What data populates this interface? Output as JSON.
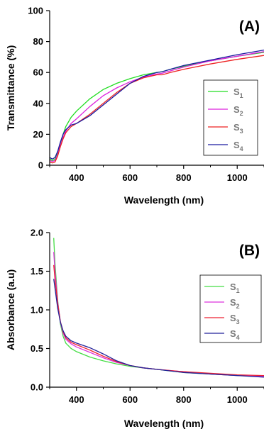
{
  "chart_data": [
    {
      "type": "line",
      "panel_label": "(A)",
      "xlabel": "Wavelength (nm)",
      "ylabel": "Transmittance (%)",
      "xlim": [
        300,
        1100
      ],
      "ylim": [
        0,
        100
      ],
      "xticks": [
        400,
        600,
        800,
        1000
      ],
      "yticks": [
        0,
        20,
        40,
        60,
        80,
        100
      ],
      "legend_position": "right",
      "grid": false,
      "series": [
        {
          "name": "S",
          "sub": "1",
          "color": "#22dd22",
          "points": [
            [
              300,
              4
            ],
            [
              310,
              3
            ],
            [
              320,
              4
            ],
            [
              330,
              8
            ],
            [
              340,
              14
            ],
            [
              350,
              20
            ],
            [
              360,
              25
            ],
            [
              380,
              31
            ],
            [
              400,
              35
            ],
            [
              450,
              43
            ],
            [
              500,
              49
            ],
            [
              550,
              53
            ],
            [
              600,
              56
            ],
            [
              650,
              58.5
            ],
            [
              700,
              60
            ],
            [
              720,
              60.5
            ],
            [
              750,
              62
            ],
            [
              800,
              64
            ],
            [
              900,
              67.5
            ],
            [
              1000,
              70.5
            ],
            [
              1100,
              73
            ]
          ]
        },
        {
          "name": "S",
          "sub": "2",
          "color": "#dd22dd",
          "points": [
            [
              300,
              3
            ],
            [
              310,
              2.5
            ],
            [
              320,
              3
            ],
            [
              330,
              7
            ],
            [
              340,
              13
            ],
            [
              350,
              18
            ],
            [
              360,
              22
            ],
            [
              380,
              27
            ],
            [
              400,
              30
            ],
            [
              450,
              38
            ],
            [
              500,
              45
            ],
            [
              550,
              50
            ],
            [
              600,
              54
            ],
            [
              650,
              57
            ],
            [
              700,
              59
            ],
            [
              720,
              59.5
            ],
            [
              750,
              61
            ],
            [
              800,
              63.5
            ],
            [
              900,
              67.5
            ],
            [
              1000,
              70.5
            ],
            [
              1100,
              73.5
            ]
          ]
        },
        {
          "name": "S",
          "sub": "3",
          "color": "#ee2222",
          "points": [
            [
              300,
              2
            ],
            [
              310,
              1.5
            ],
            [
              320,
              2
            ],
            [
              330,
              6
            ],
            [
              340,
              12
            ],
            [
              350,
              17
            ],
            [
              360,
              21
            ],
            [
              380,
              25
            ],
            [
              400,
              27
            ],
            [
              450,
              33
            ],
            [
              500,
              40
            ],
            [
              550,
              47
            ],
            [
              600,
              53
            ],
            [
              650,
              56.5
            ],
            [
              700,
              58.5
            ],
            [
              720,
              58.5
            ],
            [
              750,
              60
            ],
            [
              800,
              62
            ],
            [
              900,
              65.5
            ],
            [
              1000,
              68.5
            ],
            [
              1100,
              71
            ]
          ]
        },
        {
          "name": "S",
          "sub": "4",
          "color": "#1a1aa0",
          "points": [
            [
              300,
              5
            ],
            [
              310,
              4
            ],
            [
              320,
              5
            ],
            [
              330,
              9
            ],
            [
              340,
              15
            ],
            [
              350,
              20
            ],
            [
              360,
              23
            ],
            [
              380,
              26
            ],
            [
              400,
              27
            ],
            [
              450,
              32
            ],
            [
              500,
              39
            ],
            [
              550,
              46
            ],
            [
              600,
              53
            ],
            [
              650,
              57.5
            ],
            [
              700,
              60
            ],
            [
              720,
              60.5
            ],
            [
              750,
              62
            ],
            [
              800,
              64.5
            ],
            [
              900,
              68
            ],
            [
              1000,
              71.5
            ],
            [
              1100,
              74.5
            ]
          ]
        }
      ]
    },
    {
      "type": "line",
      "panel_label": "(B)",
      "xlabel": "Wavelength (nm)",
      "ylabel": "Absorbance (a.u)",
      "xlim": [
        300,
        1100
      ],
      "ylim": [
        0,
        2
      ],
      "xticks": [
        400,
        600,
        800,
        1000
      ],
      "yticks": [
        "0.0",
        "0.5",
        "1.0",
        "1.5",
        "2.0"
      ],
      "legend_position": "right",
      "grid": false,
      "series": [
        {
          "name": "S",
          "sub": "1",
          "color": "#44dd44",
          "points": [
            [
              315,
              1.93
            ],
            [
              320,
              1.6
            ],
            [
              330,
              1.12
            ],
            [
              340,
              0.82
            ],
            [
              350,
              0.66
            ],
            [
              360,
              0.57
            ],
            [
              380,
              0.5
            ],
            [
              400,
              0.46
            ],
            [
              450,
              0.39
            ],
            [
              500,
              0.34
            ],
            [
              550,
              0.3
            ],
            [
              600,
              0.27
            ],
            [
              650,
              0.25
            ],
            [
              700,
              0.23
            ],
            [
              800,
              0.19
            ],
            [
              900,
              0.17
            ],
            [
              1000,
              0.15
            ],
            [
              1100,
              0.14
            ]
          ]
        },
        {
          "name": "S",
          "sub": "2",
          "color": "#dd33dd",
          "points": [
            [
              315,
              1.75
            ],
            [
              320,
              1.5
            ],
            [
              330,
              1.1
            ],
            [
              340,
              0.84
            ],
            [
              350,
              0.7
            ],
            [
              360,
              0.62
            ],
            [
              380,
              0.56
            ],
            [
              400,
              0.52
            ],
            [
              450,
              0.45
            ],
            [
              500,
              0.38
            ],
            [
              550,
              0.32
            ],
            [
              600,
              0.28
            ],
            [
              650,
              0.25
            ],
            [
              700,
              0.23
            ],
            [
              800,
              0.2
            ],
            [
              900,
              0.17
            ],
            [
              1000,
              0.15
            ],
            [
              1100,
              0.14
            ]
          ]
        },
        {
          "name": "S",
          "sub": "3",
          "color": "#ee2233",
          "points": [
            [
              315,
              1.58
            ],
            [
              320,
              1.4
            ],
            [
              330,
              1.08
            ],
            [
              340,
              0.85
            ],
            [
              350,
              0.72
            ],
            [
              360,
              0.64
            ],
            [
              380,
              0.58
            ],
            [
              400,
              0.55
            ],
            [
              450,
              0.48
            ],
            [
              500,
              0.4
            ],
            [
              550,
              0.33
            ],
            [
              600,
              0.28
            ],
            [
              650,
              0.25
            ],
            [
              700,
              0.23
            ],
            [
              800,
              0.2
            ],
            [
              900,
              0.18
            ],
            [
              1000,
              0.16
            ],
            [
              1100,
              0.15
            ]
          ]
        },
        {
          "name": "S",
          "sub": "4",
          "color": "#22229a",
          "points": [
            [
              315,
              1.4
            ],
            [
              320,
              1.28
            ],
            [
              330,
              1.02
            ],
            [
              340,
              0.84
            ],
            [
              350,
              0.73
            ],
            [
              360,
              0.66
            ],
            [
              380,
              0.6
            ],
            [
              400,
              0.57
            ],
            [
              450,
              0.51
            ],
            [
              500,
              0.43
            ],
            [
              550,
              0.34
            ],
            [
              600,
              0.28
            ],
            [
              650,
              0.25
            ],
            [
              700,
              0.23
            ],
            [
              800,
              0.19
            ],
            [
              900,
              0.17
            ],
            [
              1000,
              0.15
            ],
            [
              1100,
              0.13
            ]
          ]
        }
      ]
    }
  ]
}
